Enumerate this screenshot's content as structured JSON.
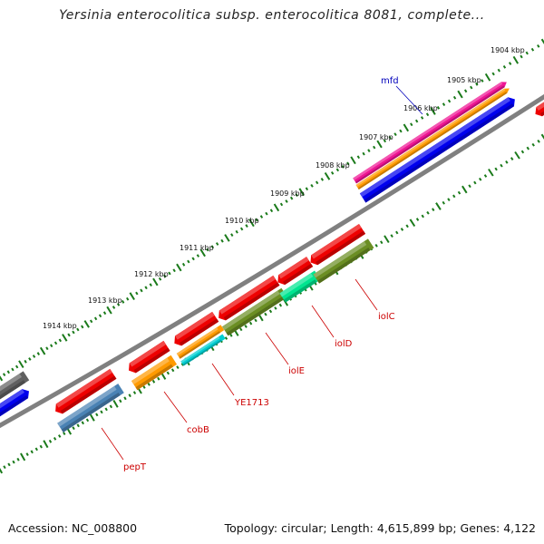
{
  "title": "Yersinia enterocolitica subsp. enterocolitica 8081, complete...",
  "footer": {
    "accession": "Accession: NC_008800",
    "summary": "Topology: circular; Length: 4,615,899 bp; Genes: 4,122"
  },
  "ticks": [
    "1904 kbp",
    "1905 kbp",
    "1906 kbp",
    "1907 kbp",
    "1908 kbp",
    "1909 kbp",
    "1910 kbp",
    "1911 kbp",
    "1912 kbp",
    "1913 kbp",
    "1914 kbp"
  ],
  "gene_labels": [
    {
      "id": "mfd",
      "text": "mfd",
      "color": "#0000bb"
    },
    {
      "id": "pepT",
      "text": "pepT",
      "color": "#cc0000"
    },
    {
      "id": "cobB",
      "text": "cobB",
      "color": "#cc0000"
    },
    {
      "id": "YE1713",
      "text": "YE1713",
      "color": "#cc0000"
    },
    {
      "id": "iolE",
      "text": "iolE",
      "color": "#cc0000"
    },
    {
      "id": "iolD",
      "text": "iolD",
      "color": "#cc0000"
    },
    {
      "id": "iolC",
      "text": "iolC",
      "color": "#cc0000"
    }
  ],
  "colors": {
    "backbone": "#808080",
    "tick": "#1a7a1a",
    "cds_red": "#ee0000",
    "cds_blue": "#0000ee",
    "gray": "#606060",
    "pink": "#ee1493",
    "orange": "#ff9a00",
    "olive": "#6b8e23",
    "steel": "#4a82b4",
    "cyan": "#00ced1",
    "mint": "#00e590"
  }
}
